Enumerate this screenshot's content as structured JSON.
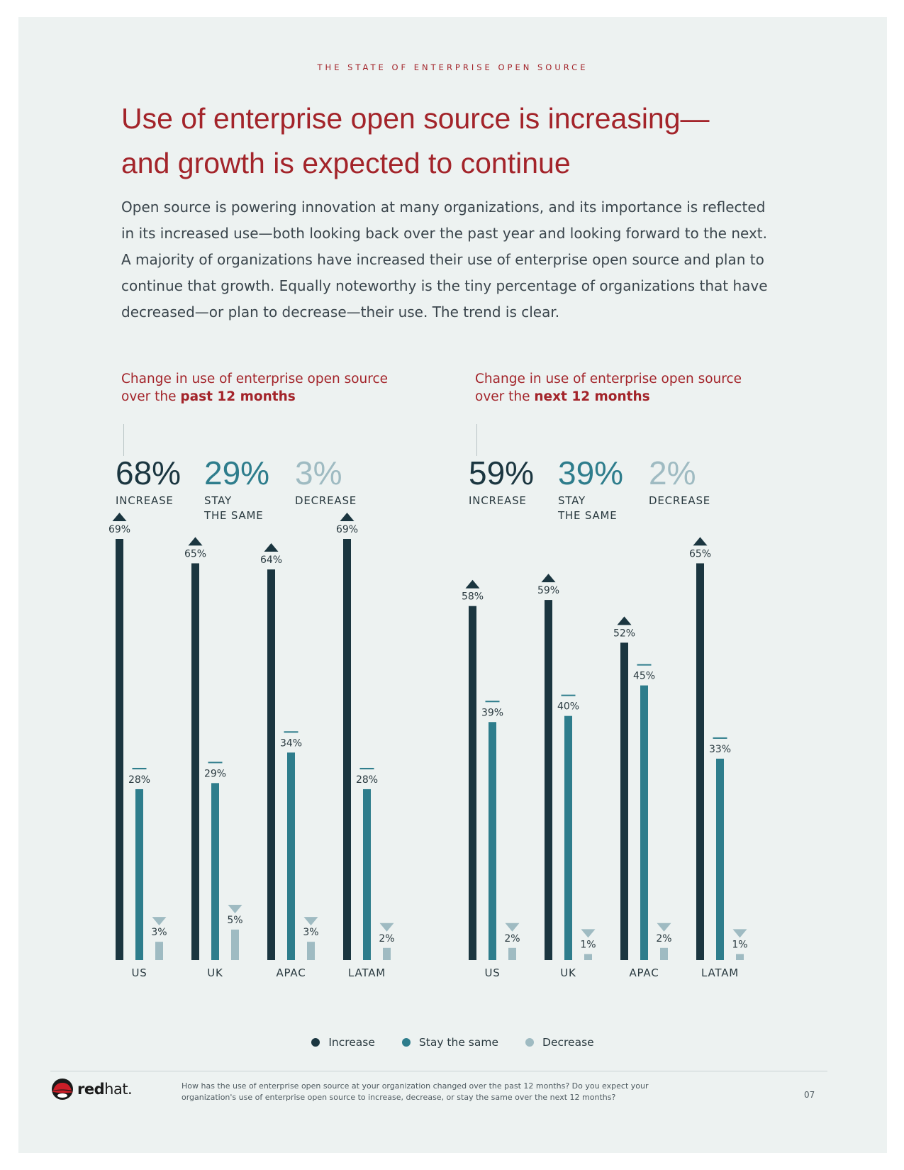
{
  "header": {
    "eyebrow": "THE STATE OF ENTERPRISE OPEN SOURCE",
    "title_line1": "Use of enterprise open source is increasing—",
    "title_line2": "and growth is expected to continue"
  },
  "intro": "Open source is powering innovation at many organizations, and its importance is reflected in its increased use—both looking back over the past year and looking forward to the next. A majority of organizations have increased their use of enterprise open source and plan to continue that growth. Equally noteworthy is the tiny percentage of organizations that have decreased—or plan to decrease—their use. The trend is clear.",
  "panels": [
    {
      "heading_prefix": "Change in use of enterprise open source over the ",
      "heading_bold": "past 12 months",
      "stats": [
        {
          "value": "68%",
          "label": "INCREASE"
        },
        {
          "value": "29%",
          "label": "STAY\nTHE SAME"
        },
        {
          "value": "3%",
          "label": "DECREASE"
        }
      ]
    },
    {
      "heading_prefix": "Change in use of enterprise open source over the ",
      "heading_bold": "next 12 months",
      "stats": [
        {
          "value": "59%",
          "label": "INCREASE"
        },
        {
          "value": "39%",
          "label": "STAY\nTHE SAME"
        },
        {
          "value": "2%",
          "label": "DECREASE"
        }
      ]
    }
  ],
  "colors": {
    "increase": "#1b3640",
    "stay": "#2e7d8c",
    "decrease": "#9fbbc2",
    "accent": "#a3242a"
  },
  "chart_data": [
    {
      "type": "bar",
      "categories": [
        "US",
        "UK",
        "APAC",
        "LATAM"
      ],
      "series": [
        {
          "name": "Increase",
          "values": [
            69,
            65,
            64,
            69
          ]
        },
        {
          "name": "Stay the same",
          "values": [
            28,
            29,
            34,
            28
          ]
        },
        {
          "name": "Decrease",
          "values": [
            3,
            5,
            3,
            2
          ]
        }
      ],
      "ylim": [
        0,
        69
      ]
    },
    {
      "type": "bar",
      "categories": [
        "US",
        "UK",
        "APAC",
        "LATAM"
      ],
      "series": [
        {
          "name": "Increase",
          "values": [
            58,
            59,
            52,
            65
          ]
        },
        {
          "name": "Stay the same",
          "values": [
            39,
            40,
            45,
            33
          ]
        },
        {
          "name": "Decrease",
          "values": [
            2,
            1,
            2,
            1
          ]
        }
      ],
      "ylim": [
        0,
        69
      ]
    }
  ],
  "legend": [
    {
      "label": "Increase",
      "color": "#1b3640"
    },
    {
      "label": "Stay the same",
      "color": "#2e7d8c"
    },
    {
      "label": "Decrease",
      "color": "#9fbbc2"
    }
  ],
  "footer": {
    "logo_bold": "red",
    "logo_light": "hat.",
    "question": "How has the use of enterprise open source at your organization changed over the past 12 months? Do you expect your organization's use of enterprise open source to increase, decrease, or stay the same over the next 12 months?",
    "page_number": "07"
  }
}
